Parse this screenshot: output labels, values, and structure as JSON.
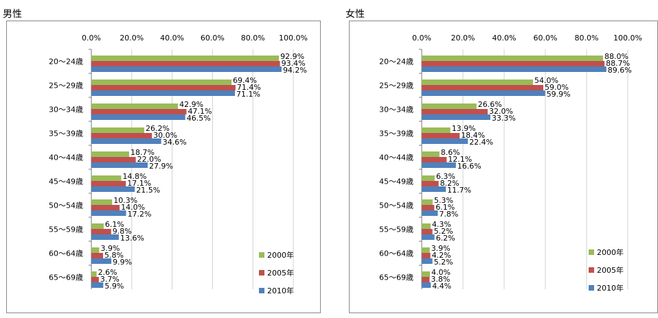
{
  "colors": {
    "2000": "#9BBB59",
    "2005": "#C0504D",
    "2010": "#4F81BD"
  },
  "chart_data": [
    {
      "type": "bar",
      "orientation": "horizontal",
      "title": "男性",
      "categories": [
        "20～24歳",
        "25～29歳",
        "30～34歳",
        "35～39歳",
        "40～44歳",
        "45～49歳",
        "50～54歳",
        "55～59歳",
        "60～64歳",
        "65～69歳"
      ],
      "xlim": [
        0,
        100
      ],
      "xticks": [
        "0.0%",
        "20.0%",
        "40.0%",
        "60.0%",
        "80.0%",
        "100.0%"
      ],
      "legend_position": "bottom-right",
      "series": [
        {
          "name": "2000年",
          "values": [
            92.9,
            69.4,
            42.9,
            26.2,
            18.7,
            14.8,
            10.3,
            6.1,
            3.9,
            2.6
          ],
          "labels": [
            "92.9%",
            "69.4%",
            "42.9%",
            "26.2%",
            "18.7%",
            "14.8%",
            "10.3%",
            "6.1%",
            "3.9%",
            "2.6%"
          ]
        },
        {
          "name": "2005年",
          "values": [
            93.4,
            71.4,
            47.1,
            30.0,
            22.0,
            17.1,
            14.0,
            9.8,
            5.8,
            3.7
          ],
          "labels": [
            "93.4%",
            "71.4%",
            "47.1%",
            "30.0%",
            "22.0%",
            "17.1%",
            "14.0%",
            "9.8%",
            "5.8%",
            "3.7%"
          ]
        },
        {
          "name": "2010年",
          "values": [
            94.2,
            71.1,
            46.5,
            34.6,
            27.9,
            21.5,
            17.2,
            13.6,
            9.9,
            5.9
          ],
          "labels": [
            "94.2%",
            "71.1%",
            "46.5%",
            "34.6%",
            "27.9%",
            "21.5%",
            "17.2%",
            "13.6%",
            "9.9%",
            "5.9%"
          ]
        }
      ]
    },
    {
      "type": "bar",
      "orientation": "horizontal",
      "title": "女性",
      "categories": [
        "20～24歳",
        "25～29歳",
        "30～34歳",
        "35～39歳",
        "40～44歳",
        "45～49歳",
        "50～54歳",
        "55～59歳",
        "60～64歳",
        "65～69歳"
      ],
      "xlim": [
        0,
        100
      ],
      "xticks": [
        "0.0%",
        "20.0%",
        "40.0%",
        "60.0%",
        "80.0%",
        "100.0%"
      ],
      "legend_position": "bottom-right",
      "series": [
        {
          "name": "2000年",
          "values": [
            88.0,
            54.0,
            26.6,
            13.9,
            8.6,
            6.3,
            5.3,
            4.3,
            3.9,
            4.0
          ],
          "labels": [
            "88.0%",
            "54.0%",
            "26.6%",
            "13.9%",
            "8.6%",
            "6.3%",
            "5.3%",
            "4.3%",
            "3.9%",
            "4.0%"
          ]
        },
        {
          "name": "2005年",
          "values": [
            88.7,
            59.0,
            32.0,
            18.4,
            12.1,
            8.2,
            6.1,
            5.2,
            4.2,
            3.8
          ],
          "labels": [
            "88.7%",
            "59.0%",
            "32.0%",
            "18.4%",
            "12.1%",
            "8.2%",
            "6.1%",
            "5.2%",
            "4.2%",
            "3.8%"
          ]
        },
        {
          "name": "2010年",
          "values": [
            89.6,
            59.9,
            33.3,
            22.4,
            16.6,
            11.7,
            7.8,
            6.2,
            5.2,
            4.4
          ],
          "labels": [
            "89.6%",
            "59.9%",
            "33.3%",
            "22.4%",
            "16.6%",
            "11.7%",
            "7.8%",
            "6.2%",
            "5.2%",
            "4.4%"
          ]
        }
      ]
    }
  ]
}
